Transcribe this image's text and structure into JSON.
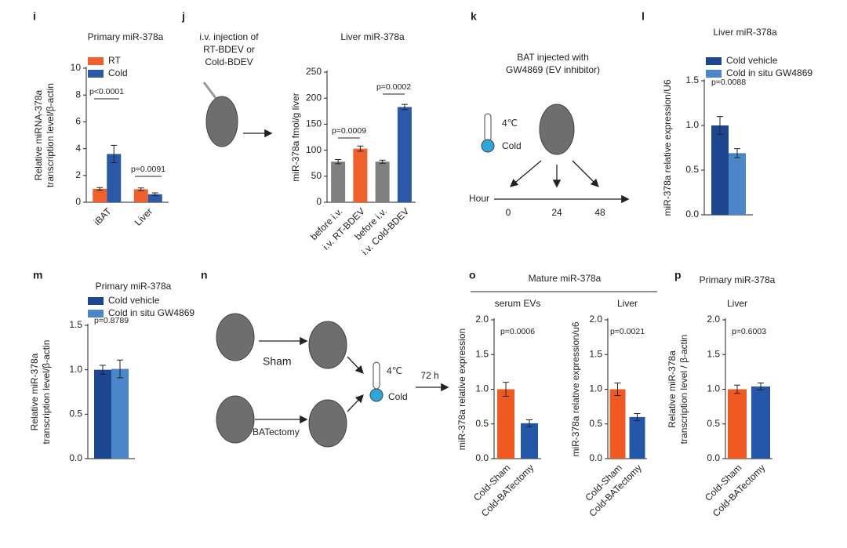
{
  "chart_data": [
    {
      "type": "bar",
      "panel": "i",
      "title": "Primary miR-378a",
      "ylabel": [
        "Relative miRNA-378a",
        "transcription level/β-actin"
      ],
      "categories": [
        "iBAT",
        "Liver"
      ],
      "series": [
        {
          "name": "RT",
          "color": "#f0602a",
          "values": [
            1.0,
            0.97
          ],
          "errors": [
            0.1,
            0.1
          ]
        },
        {
          "name": "Cold",
          "color": "#2c58a8",
          "values": [
            3.6,
            0.6
          ],
          "errors": [
            0.65,
            0.1
          ]
        }
      ],
      "ylim": [
        0,
        10
      ],
      "yticks": [
        0,
        2,
        4,
        6,
        8,
        10
      ],
      "annotations": [
        {
          "text": "p<0.0001"
        },
        {
          "text": "p=0.0091"
        }
      ]
    },
    {
      "type": "bar",
      "panel": "j",
      "title": "Liver miR-378a",
      "ylabel": [
        "miR-378a fmol/g liver"
      ],
      "categories": [
        "before i.v.",
        "i.v. RT-BDEV",
        "before i.v.",
        "i.v. Cold-BDEV"
      ],
      "values": [
        78,
        103,
        78,
        183
      ],
      "errors": [
        4,
        5,
        3,
        5
      ],
      "colors": [
        "#808080",
        "#f0602a",
        "#808080",
        "#2c58a8"
      ],
      "ylim": [
        0,
        250
      ],
      "yticks": [
        0,
        50,
        100,
        150,
        200,
        250
      ],
      "annotations": [
        {
          "text": "p=0.0009"
        },
        {
          "text": "p=0.0002"
        }
      ]
    },
    {
      "type": "bar",
      "panel": "l",
      "title": "Liver miR-378a",
      "ylabel": [
        "miR-378a relative expression/U6"
      ],
      "categories": [
        null
      ],
      "series": [
        {
          "name": "Cold vehicle",
          "color": "#1d4590",
          "values": [
            1.0
          ],
          "errors": [
            0.1
          ]
        },
        {
          "name": "Cold in situ GW4869",
          "color": "#4a86c8",
          "values": [
            0.69
          ],
          "errors": [
            0.05
          ]
        }
      ],
      "ylim": [
        0,
        1.5
      ],
      "yticks": [
        {
          "value": 0,
          "label": "0.0"
        },
        {
          "value": 0.5,
          "label": "0.5"
        },
        {
          "value": 1,
          "label": "1.0"
        },
        {
          "value": 1.5,
          "label": "1.5"
        }
      ],
      "annotations": [
        {
          "text": "p=0.0088"
        }
      ]
    },
    {
      "type": "bar",
      "panel": "m",
      "title": "Primary miR-378a",
      "ylabel": [
        "Relative miR-378a",
        "transcription level/β-actin"
      ],
      "categories": [
        null
      ],
      "series": [
        {
          "name": "Cold vehicle",
          "color": "#1d4590",
          "values": [
            1.0
          ],
          "errors": [
            0.05
          ]
        },
        {
          "name": "Cold in situ GW4869",
          "color": "#4a86c8",
          "values": [
            1.01
          ],
          "errors": [
            0.1
          ]
        }
      ],
      "ylim": [
        0,
        1.5
      ],
      "yticks": [
        {
          "value": 0,
          "label": "0.0"
        },
        {
          "value": 0.5,
          "label": "0.5"
        },
        {
          "value": 1,
          "label": "1.0"
        },
        {
          "value": 1.5,
          "label": "1.5"
        }
      ],
      "annotations": [
        {
          "text": "p=0.8789"
        }
      ]
    },
    {
      "type": "bar",
      "title": "serum EVs",
      "ylabel": [
        "miR-378a relative expression"
      ],
      "categories": [
        "Cold-Sham",
        "Cold-BATectomy"
      ],
      "values": [
        1.0,
        0.51
      ],
      "errors": [
        0.1,
        0.05
      ],
      "colors": [
        "#f05a22",
        "#2457a8"
      ],
      "ylim": [
        0,
        2
      ],
      "yticks": [
        {
          "value": 0,
          "label": "0.0"
        },
        {
          "value": 0.5,
          "label": "0.5"
        },
        {
          "value": 1,
          "label": "1.0"
        },
        {
          "value": 1.5,
          "label": "1.5"
        },
        {
          "value": 2,
          "label": "2.0"
        }
      ],
      "annotations": [
        {
          "text": "p=0.0006"
        }
      ]
    },
    {
      "type": "bar",
      "title": "Liver",
      "ylabel": [
        "miR-378a relative expression/u6"
      ],
      "categories": [
        "Cold-Sham",
        "Cold-BATectomy"
      ],
      "values": [
        1.0,
        0.6
      ],
      "errors": [
        0.09,
        0.05
      ],
      "colors": [
        "#f05a22",
        "#2457a8"
      ],
      "ylim": [
        0,
        2
      ],
      "yticks": [
        {
          "value": 0,
          "label": "0.0"
        },
        {
          "value": 0.5,
          "label": "0.5"
        },
        {
          "value": 1,
          "label": "1.0"
        },
        {
          "value": 1.5,
          "label": "1.5"
        },
        {
          "value": 2,
          "label": "2.0"
        }
      ],
      "annotations": [
        {
          "text": "p=0.0021"
        }
      ]
    },
    {
      "type": "bar",
      "panel": "p",
      "title": "Primary miR-378a",
      "subtitle": "Liver",
      "ylabel": [
        "Relative miR-378a",
        "transcription level / β-actin"
      ],
      "categories": [
        "Cold-Sham",
        "Cold-BATectomy"
      ],
      "values": [
        1.0,
        1.04
      ],
      "errors": [
        0.06,
        0.05
      ],
      "colors": [
        "#f05a22",
        "#2457a8"
      ],
      "ylim": [
        0,
        2
      ],
      "yticks": [
        {
          "value": 0,
          "label": "0.0"
        },
        {
          "value": 0.5,
          "label": "0.5"
        },
        {
          "value": 1,
          "label": "1.0"
        },
        {
          "value": 1.5,
          "label": "1.5"
        },
        {
          "value": 2,
          "label": "2.0"
        }
      ],
      "annotations": [
        {
          "text": "p=0.6003"
        }
      ]
    }
  ],
  "panels": {
    "j": {
      "note": [
        "i.v. injection of",
        "RT-BDEV  or",
        "Cold-BDEV"
      ]
    },
    "k": {
      "letter": "k",
      "title": [
        "BAT injected with",
        "GW4869 (EV inhibitor)"
      ],
      "temp": "4℃",
      "cold": "Cold",
      "axis": "Hour",
      "ticks": [
        0,
        24,
        48
      ]
    },
    "n": {
      "letter": "n",
      "sham": "Sham",
      "batectomy": "BATectomy",
      "temp": "4℃",
      "cold": "Cold",
      "time": "72 h"
    },
    "o": {
      "letter": "o",
      "title": "Mature miR-378a"
    }
  }
}
